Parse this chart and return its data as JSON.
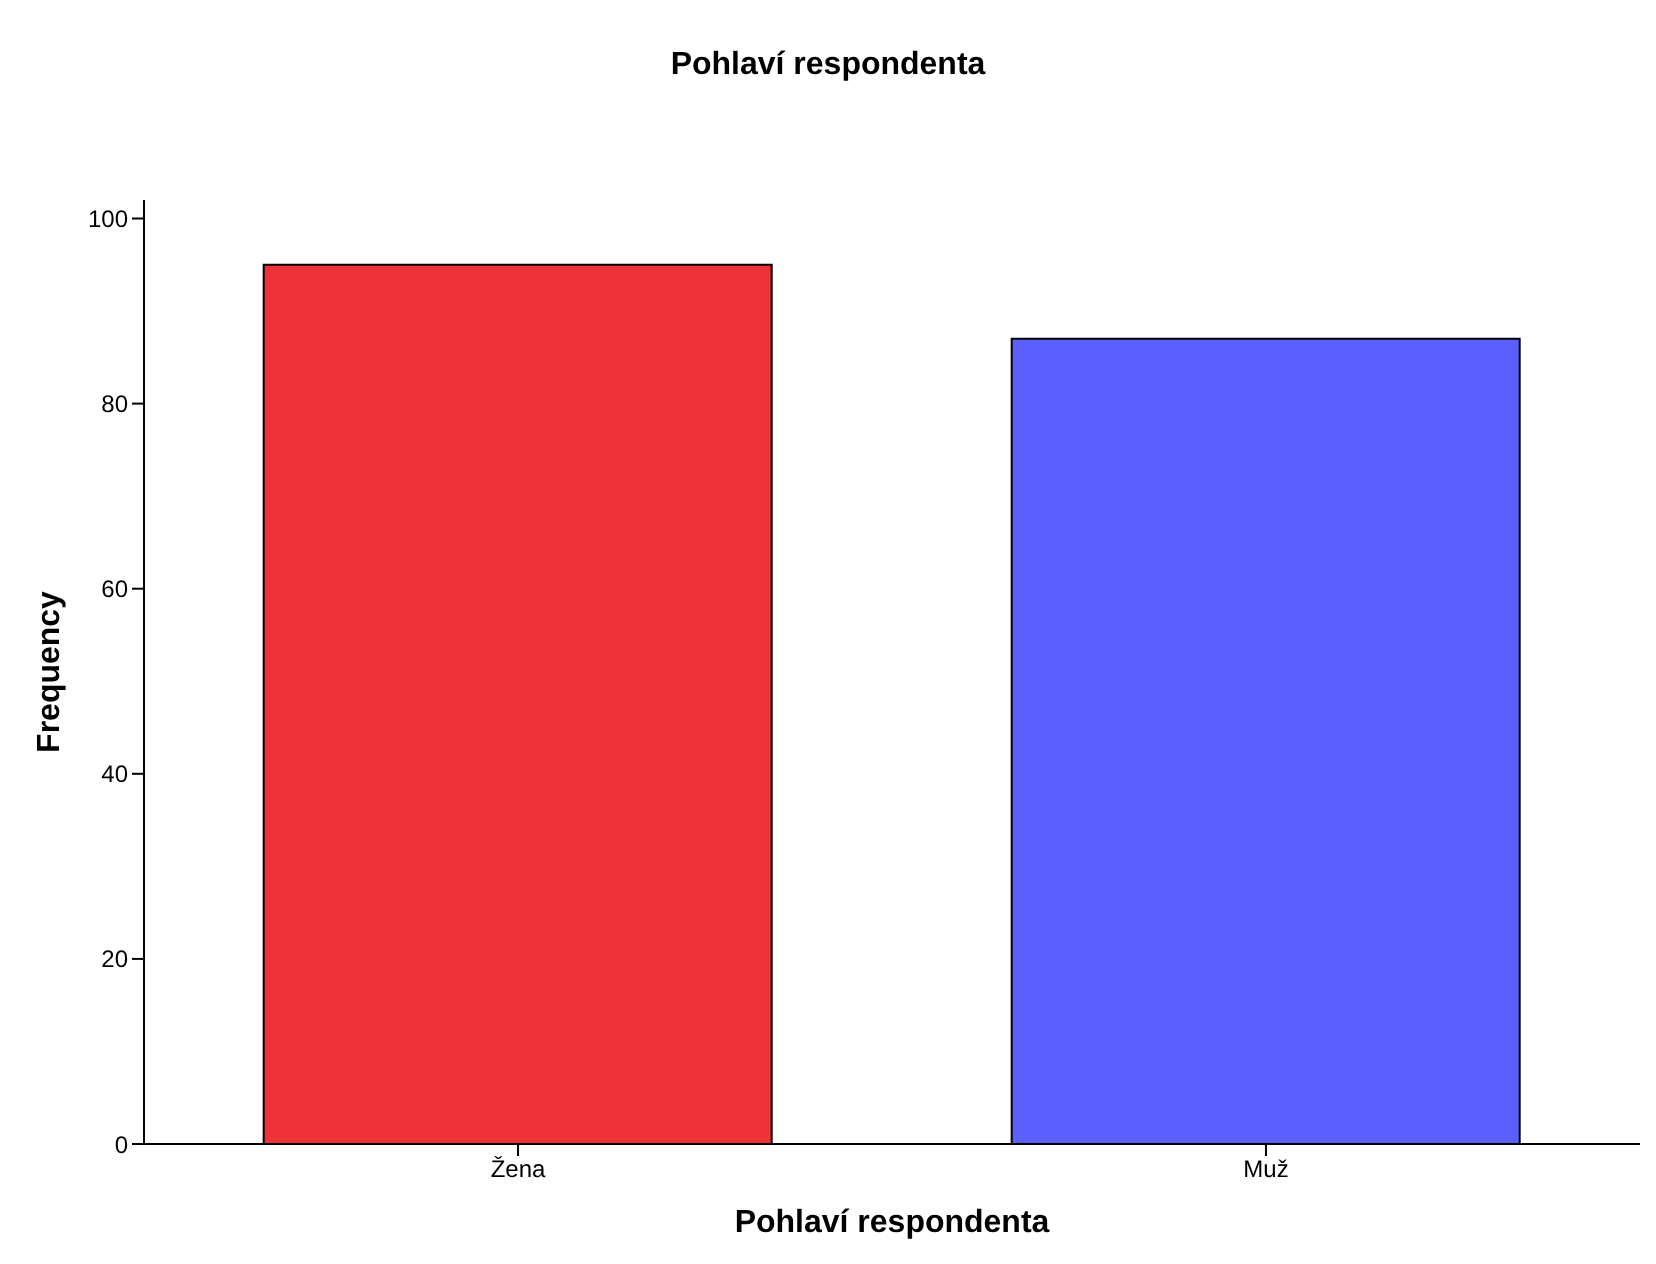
{
  "chart_data": {
    "type": "bar",
    "title": "Pohlaví respondenta",
    "xlabel": "Pohlaví respondenta",
    "ylabel": "Frequency",
    "categories": [
      "Žena",
      "Muž"
    ],
    "values": [
      95,
      87
    ],
    "colors": [
      "#ee3338",
      "#5a5ffe"
    ],
    "ylim": [
      0,
      102
    ],
    "yticks": [
      0,
      20,
      40,
      60,
      80,
      100
    ],
    "grid": false
  }
}
